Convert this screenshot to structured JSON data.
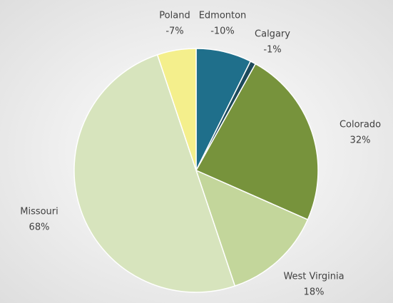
{
  "chart_data": {
    "type": "pie",
    "categories": [
      "Edmonton",
      "Calgary",
      "Colorado",
      "West Virginia",
      "Missouri",
      "Poland"
    ],
    "values": [
      -10,
      -1,
      32,
      18,
      68,
      -7
    ],
    "value_labels": [
      "-10%",
      "-1%",
      "32%",
      "18%",
      "68%",
      "-7%"
    ],
    "colors": [
      "#1f6f8b",
      "#1d4a5c",
      "#77933c",
      "#c3d69b",
      "#d7e4bd",
      "#f4ef8c"
    ]
  }
}
